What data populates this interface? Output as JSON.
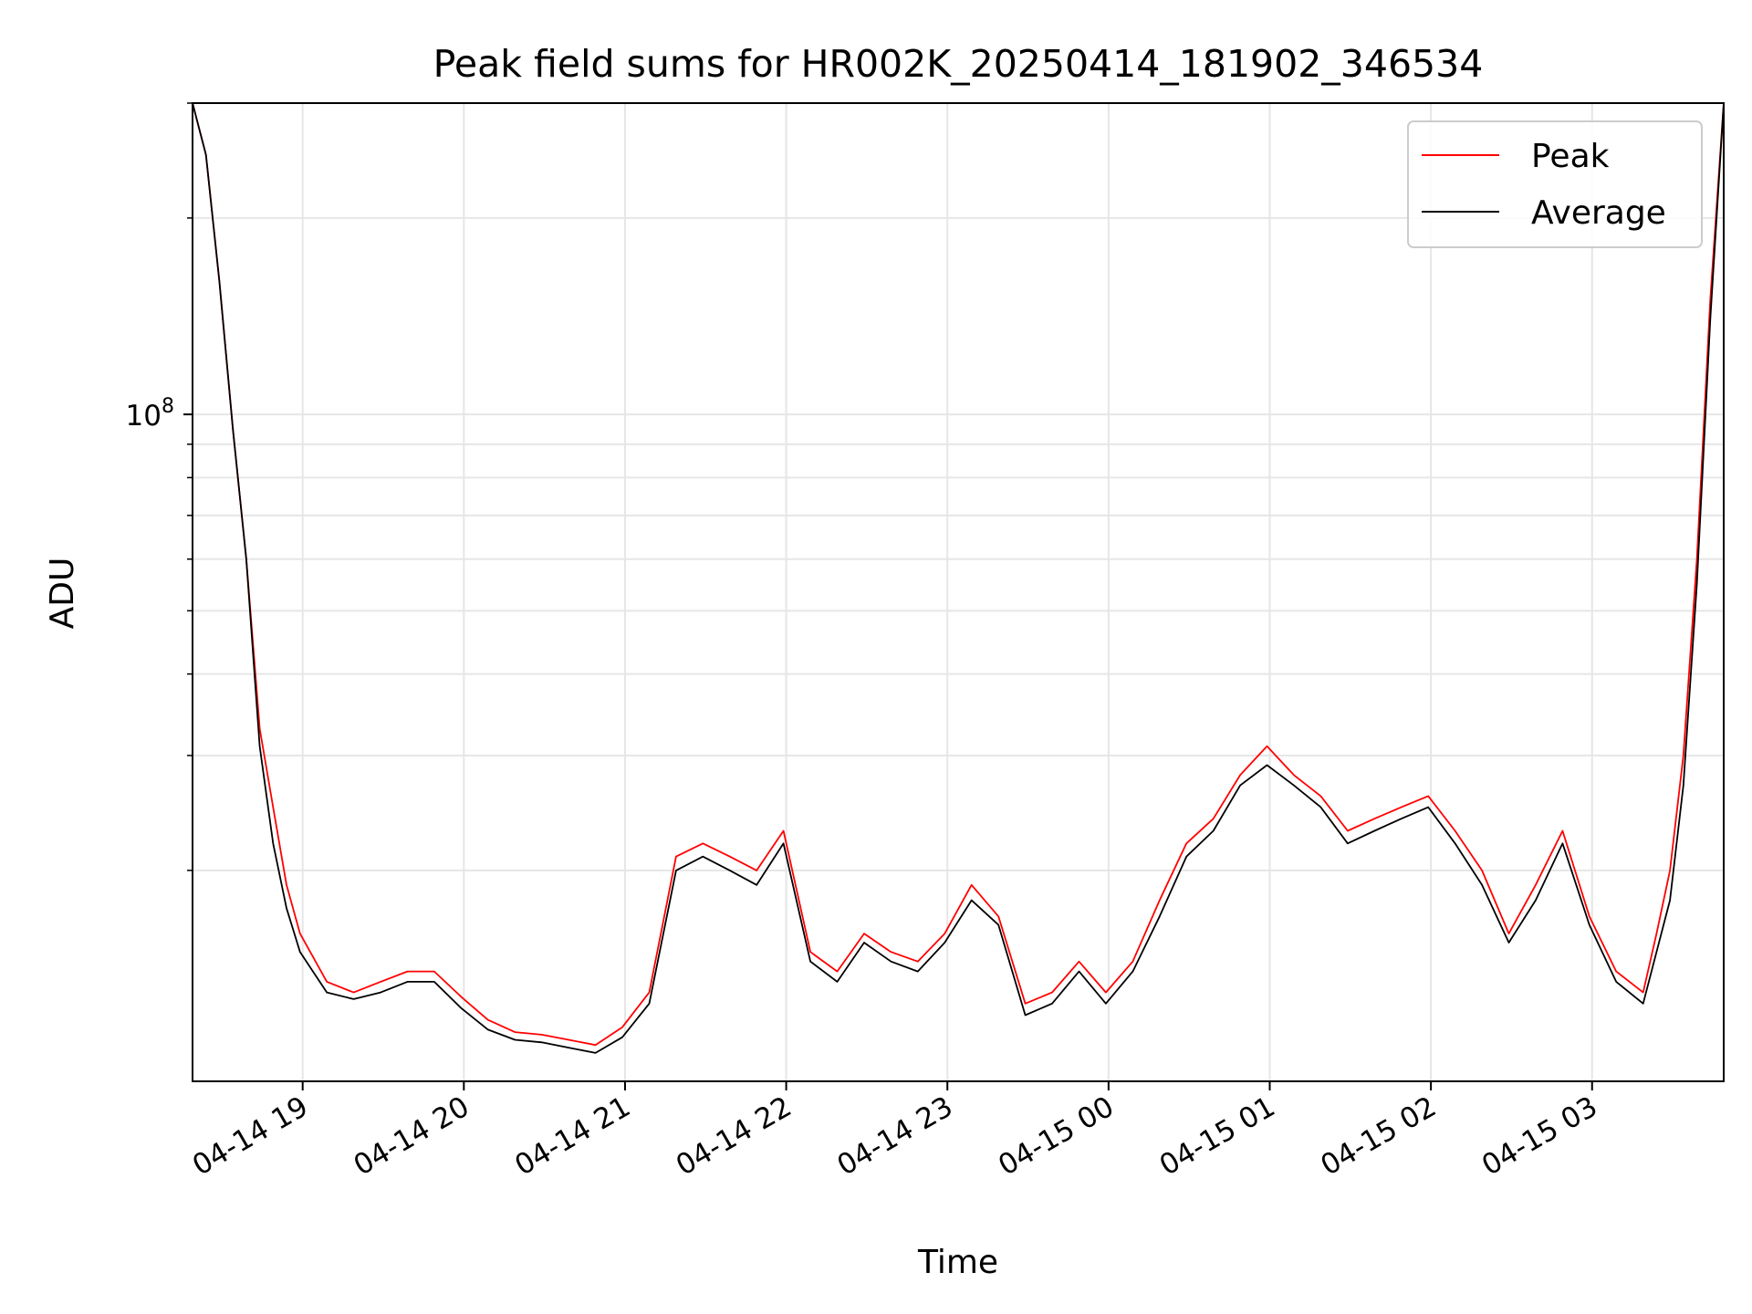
{
  "chart_data": {
    "type": "line",
    "title": "Peak field sums for HR002K_20250414_181902_346534",
    "xlabel": "Time",
    "ylabel": "ADU",
    "yscale": "log",
    "ylim": [
      9500000,
      300000000
    ],
    "xlim": [
      "04-14 18:19",
      "04-15 03:49"
    ],
    "grid": true,
    "legend_position": "top-right",
    "x_ticks": [
      "04-14 19",
      "04-14 20",
      "04-14 21",
      "04-14 22",
      "04-14 23",
      "04-15 00",
      "04-15 01",
      "04-15 02",
      "04-15 03"
    ],
    "y_major_tick_labels": [
      {
        "base": "10",
        "exp": "8"
      }
    ],
    "y_minor_ticks": [
      20000000,
      30000000,
      40000000,
      50000000,
      60000000,
      70000000,
      80000000,
      90000000,
      200000000,
      300000000
    ],
    "colors": {
      "Peak": "#ff0000",
      "Average": "#000000"
    },
    "x_times": [
      "04-14 18:19",
      "04-14 18:24",
      "04-14 18:29",
      "04-14 18:34",
      "04-14 18:39",
      "04-14 18:44",
      "04-14 18:49",
      "04-14 18:54",
      "04-14 18:59",
      "04-14 19:09",
      "04-14 19:19",
      "04-14 19:29",
      "04-14 19:39",
      "04-14 19:49",
      "04-14 19:59",
      "04-14 20:09",
      "04-14 20:19",
      "04-14 20:29",
      "04-14 20:39",
      "04-14 20:49",
      "04-14 20:59",
      "04-14 21:09",
      "04-14 21:19",
      "04-14 21:29",
      "04-14 21:39",
      "04-14 21:49",
      "04-14 21:59",
      "04-14 22:09",
      "04-14 22:19",
      "04-14 22:29",
      "04-14 22:39",
      "04-14 22:49",
      "04-14 22:59",
      "04-14 23:09",
      "04-14 23:19",
      "04-14 23:29",
      "04-14 23:39",
      "04-14 23:49",
      "04-14 23:59",
      "04-15 00:09",
      "04-15 00:19",
      "04-15 00:29",
      "04-15 00:39",
      "04-15 00:49",
      "04-15 00:59",
      "04-15 01:09",
      "04-15 01:19",
      "04-15 01:29",
      "04-15 01:39",
      "04-15 01:49",
      "04-15 01:59",
      "04-15 02:09",
      "04-15 02:19",
      "04-15 02:29",
      "04-15 02:39",
      "04-15 02:49",
      "04-15 02:59",
      "04-15 03:09",
      "04-15 03:19",
      "04-15 03:24",
      "04-15 03:29",
      "04-15 03:34",
      "04-15 03:39",
      "04-15 03:44",
      "04-15 03:49"
    ],
    "series": [
      {
        "name": "Peak",
        "values": [
          300000000,
          250000000,
          160000000,
          95000000,
          60000000,
          33000000,
          25000000,
          19000000,
          16000000,
          13500000,
          13000000,
          13500000,
          14000000,
          14000000,
          12800000,
          11800000,
          11300000,
          11200000,
          11000000,
          10800000,
          11500000,
          13000000,
          21000000,
          22000000,
          21000000,
          20000000,
          23000000,
          15000000,
          14000000,
          16000000,
          15000000,
          14500000,
          16000000,
          19000000,
          17000000,
          12500000,
          13000000,
          14500000,
          13000000,
          14500000,
          18000000,
          22000000,
          24000000,
          28000000,
          31000000,
          28000000,
          26000000,
          23000000,
          24000000,
          25000000,
          26000000,
          23000000,
          20000000,
          16000000,
          19000000,
          23000000,
          17000000,
          14000000,
          13000000,
          16000000,
          20000000,
          30000000,
          60000000,
          150000000,
          300000000
        ]
      },
      {
        "name": "Average",
        "values": [
          300000000,
          250000000,
          160000000,
          95000000,
          60000000,
          31000000,
          22000000,
          17500000,
          15000000,
          13000000,
          12700000,
          13000000,
          13500000,
          13500000,
          12300000,
          11400000,
          11000000,
          10900000,
          10700000,
          10500000,
          11100000,
          12500000,
          20000000,
          21000000,
          20000000,
          19000000,
          22000000,
          14500000,
          13500000,
          15500000,
          14500000,
          14000000,
          15500000,
          18000000,
          16500000,
          12000000,
          12500000,
          14000000,
          12500000,
          14000000,
          17000000,
          21000000,
          23000000,
          27000000,
          29000000,
          27000000,
          25000000,
          22000000,
          23000000,
          24000000,
          25000000,
          22000000,
          19000000,
          15500000,
          18000000,
          22000000,
          16500000,
          13500000,
          12500000,
          15000000,
          18000000,
          27000000,
          55000000,
          140000000,
          300000000
        ]
      }
    ]
  }
}
